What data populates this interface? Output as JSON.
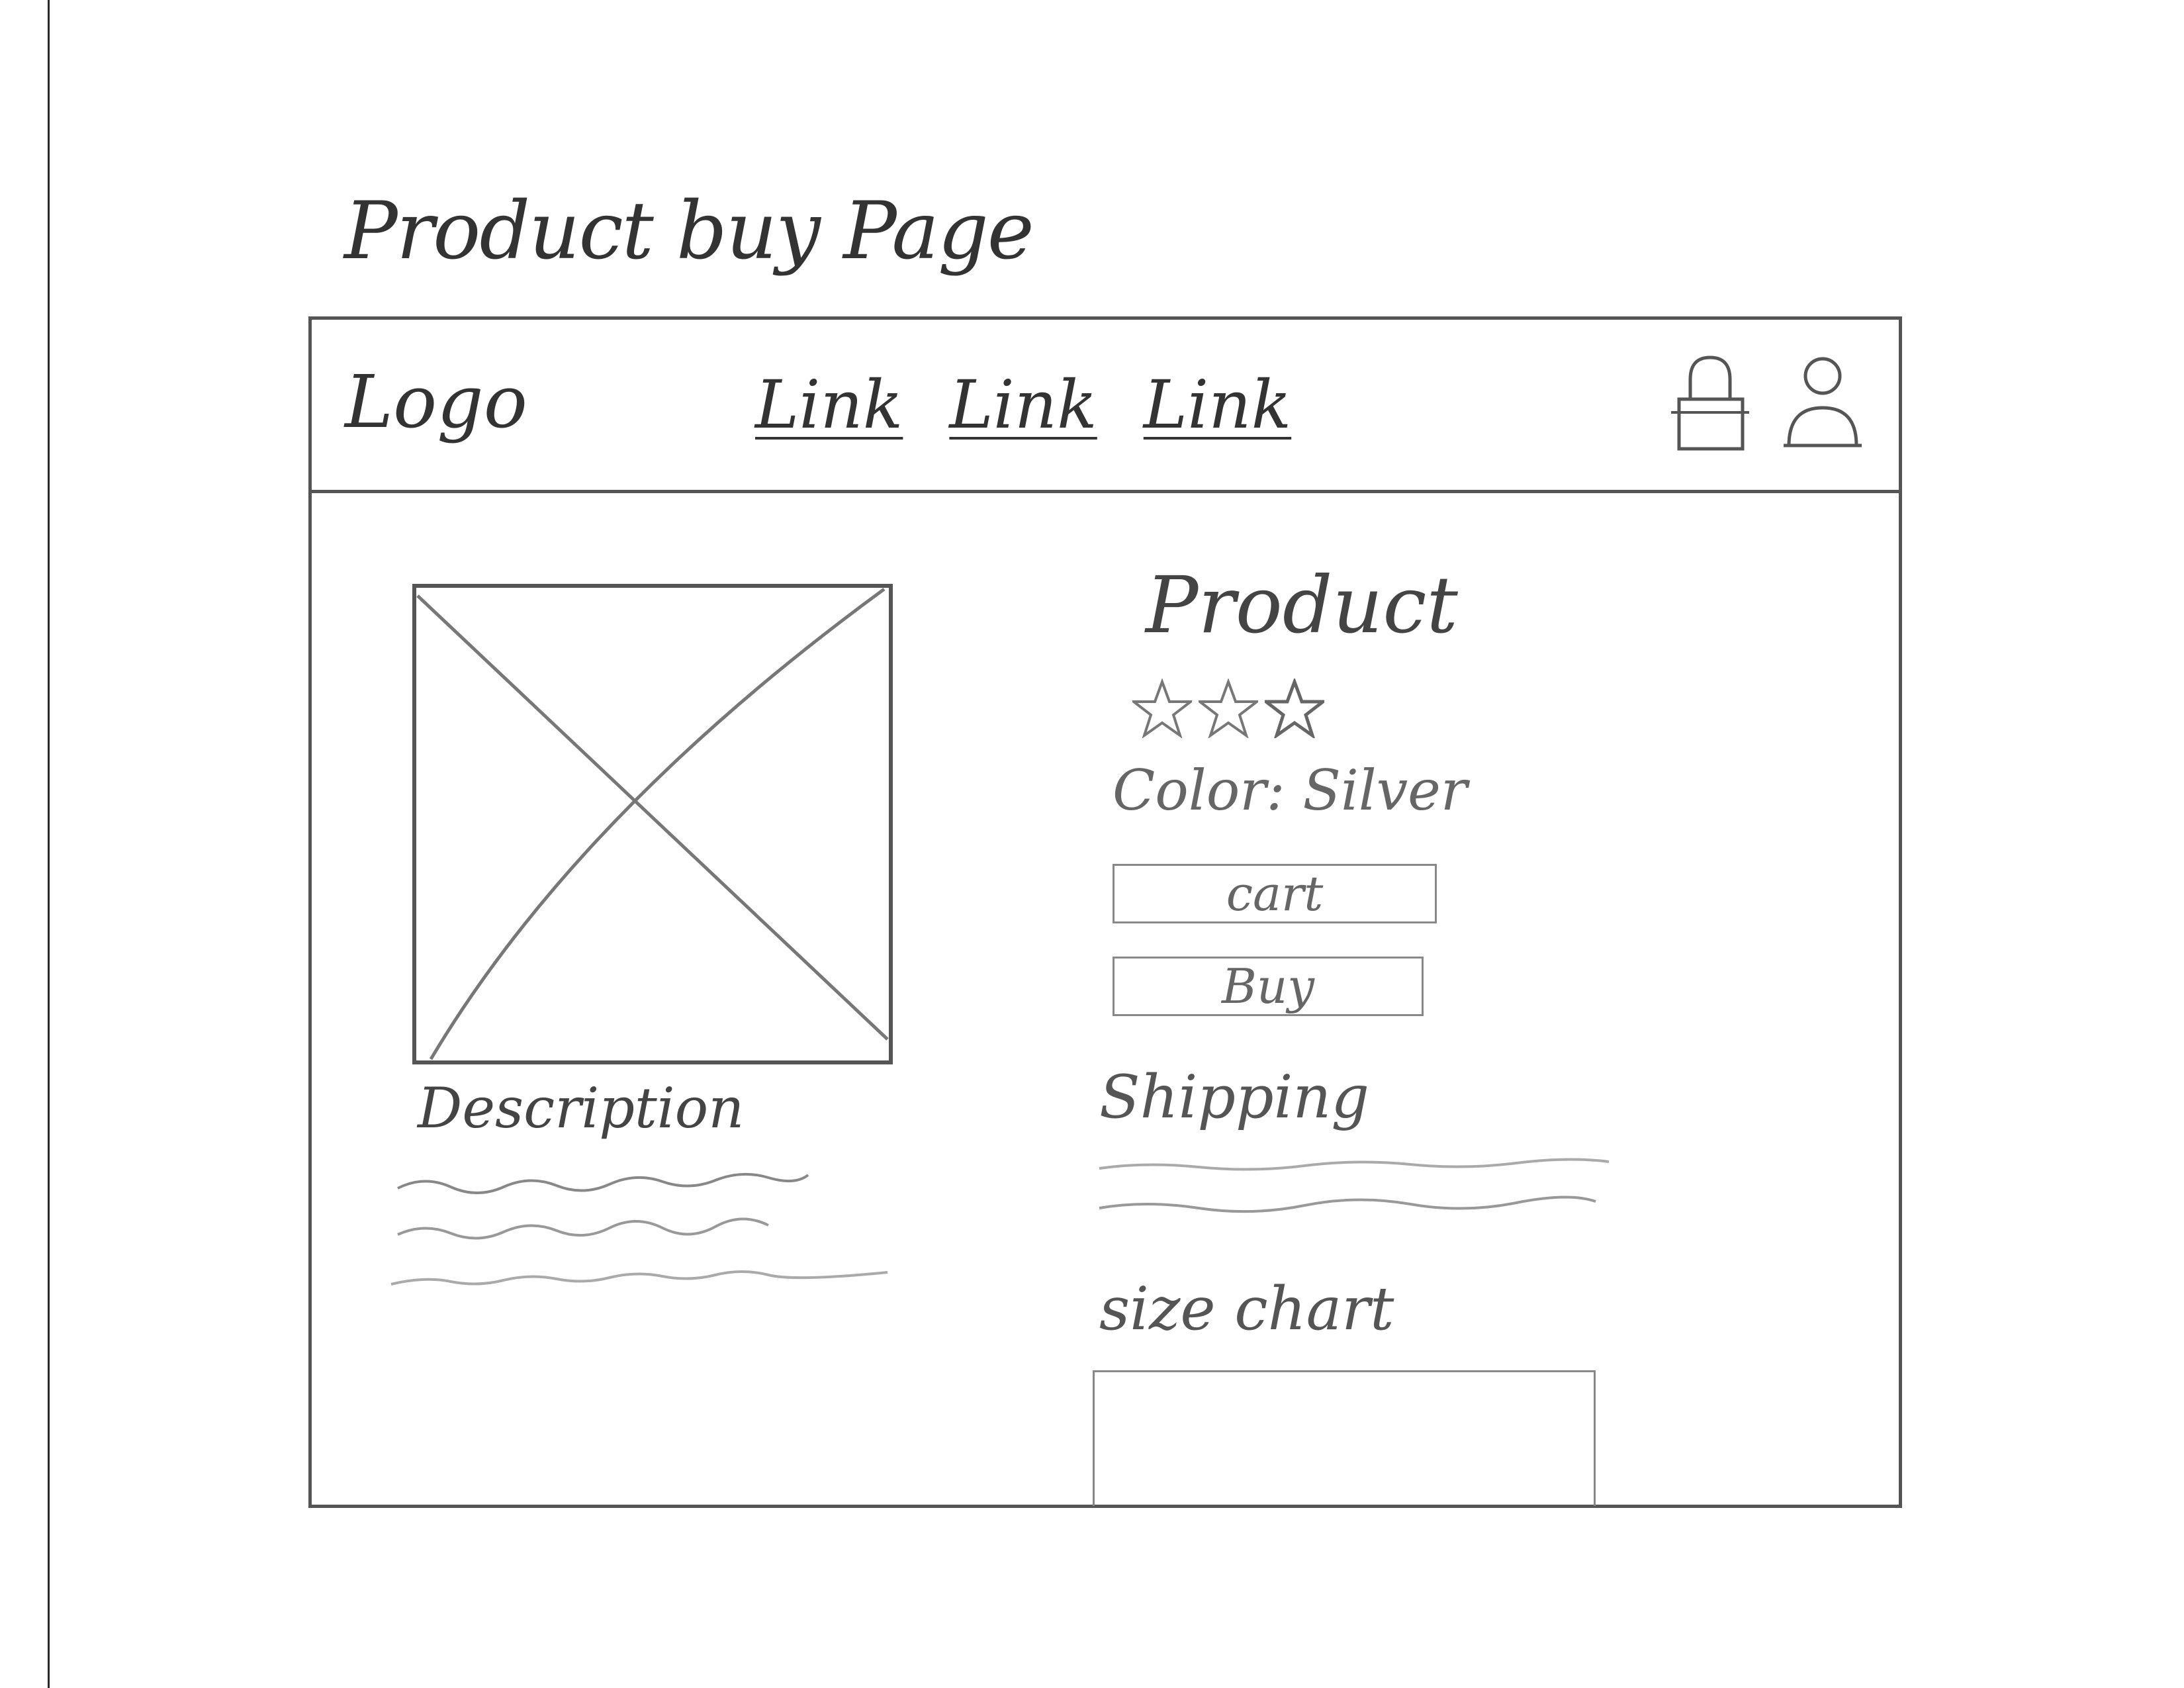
{
  "page": {
    "title": "Product buy Page"
  },
  "header": {
    "logo": "Logo",
    "links": [
      "Link",
      "Link",
      "Link"
    ],
    "icons": [
      "lock-icon",
      "user-icon"
    ]
  },
  "product": {
    "image_placeholder": "image-placeholder-icon",
    "name": "Product",
    "rating": {
      "value": 3,
      "max": 3
    },
    "color_label": "Color: Silver",
    "cart_button": "cart",
    "buy_button": "Buy"
  },
  "description": {
    "title": "Description"
  },
  "shipping": {
    "title": "Shipping"
  },
  "size_chart": {
    "title": "size chart"
  },
  "colors": {
    "stroke": "#555555",
    "pencil": "#888888",
    "background": "#ffffff"
  }
}
